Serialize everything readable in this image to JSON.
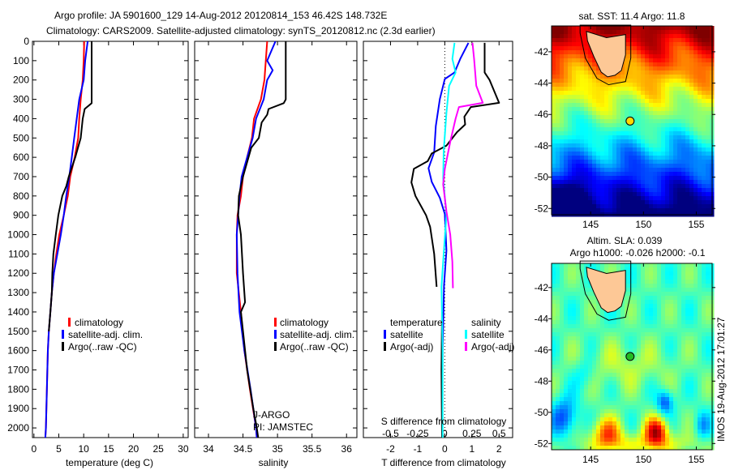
{
  "header": {
    "line1": "Argo profile: JA 5901600_129 14-Aug-2012 20120814_153 46.42S 148.732E",
    "line2": "Climatology: CARS2009. Satellite-adjusted climatology: synTS_20120812.nc (2.3d earlier)"
  },
  "colors": {
    "climatology": "#ff0000",
    "satellite": "#0000ff",
    "argo": "#000000",
    "sal_satellite": "#00ffff",
    "sal_argo": "#ff00ff"
  },
  "chart_data": [
    {
      "type": "line",
      "title": "",
      "xlabel": "temperature (deg C)",
      "ylabel": "",
      "xlim": [
        -0.3,
        31
      ],
      "ylim": [
        2050,
        0
      ],
      "xticks": [
        "0",
        "5",
        "10",
        "15",
        "20",
        "25",
        "30"
      ],
      "xtick_values": [
        0,
        5,
        10,
        15,
        20,
        25,
        30
      ],
      "yticks": [
        "0",
        "100",
        "200",
        "300",
        "400",
        "500",
        "600",
        "700",
        "800",
        "900",
        "1000",
        "1100",
        "1200",
        "1300",
        "1400",
        "1500",
        "1600",
        "1700",
        "1800",
        "1900",
        "2000"
      ],
      "ytick_values": [
        0,
        100,
        200,
        300,
        400,
        500,
        600,
        700,
        800,
        900,
        1000,
        1100,
        1200,
        1300,
        1400,
        1500,
        1600,
        1700,
        1800,
        1900,
        2000
      ],
      "legend": [
        "climatology",
        "satellite-adj. clim.",
        "Argo(..raw -QC)"
      ],
      "series": [
        {
          "name": "climatology",
          "color": "#ff0000",
          "points": [
            [
              10.1,
              0
            ],
            [
              10.0,
              100
            ],
            [
              9.8,
              200
            ],
            [
              9.4,
              300
            ],
            [
              9.1,
              400
            ],
            [
              8.9,
              500
            ],
            [
              8.2,
              600
            ],
            [
              7.3,
              700
            ],
            [
              6.8,
              800
            ],
            [
              6.0,
              900
            ],
            [
              5.1,
              1000
            ],
            [
              4.5,
              1100
            ],
            [
              4.0,
              1200
            ],
            [
              3.6,
              1300
            ],
            [
              3.3,
              1400
            ],
            [
              3.0,
              1500
            ],
            [
              2.8,
              1600
            ],
            [
              2.7,
              1700
            ],
            [
              2.6,
              1800
            ],
            [
              2.5,
              1900
            ],
            [
              2.4,
              2000
            ],
            [
              2.3,
              2050
            ]
          ]
        },
        {
          "name": "satellite-adj. clim.",
          "color": "#0000ff",
          "points": [
            [
              10.8,
              0
            ],
            [
              10.3,
              100
            ],
            [
              10.0,
              200
            ],
            [
              9.1,
              300
            ],
            [
              8.6,
              400
            ],
            [
              8.1,
              500
            ],
            [
              7.6,
              600
            ],
            [
              7.1,
              700
            ],
            [
              6.5,
              800
            ],
            [
              6.0,
              900
            ],
            [
              5.4,
              1000
            ],
            [
              4.7,
              1100
            ],
            [
              4.0,
              1200
            ],
            [
              3.6,
              1300
            ],
            [
              3.3,
              1400
            ],
            [
              3.0,
              1500
            ],
            [
              2.8,
              1600
            ],
            [
              2.7,
              1700
            ],
            [
              2.6,
              1800
            ],
            [
              2.5,
              1900
            ],
            [
              2.4,
              2000
            ],
            [
              2.3,
              2050
            ]
          ]
        },
        {
          "name": "Argo(..raw -QC)",
          "color": "#000000",
          "points": [
            [
              11.6,
              0
            ],
            [
              11.6,
              320
            ],
            [
              10.2,
              350
            ],
            [
              9.8,
              400
            ],
            [
              9.4,
              500
            ],
            [
              8.3,
              600
            ],
            [
              7.0,
              700
            ],
            [
              6.5,
              750
            ],
            [
              5.7,
              800
            ],
            [
              4.9,
              900
            ],
            [
              4.4,
              1000
            ],
            [
              3.9,
              1100
            ],
            [
              3.7,
              1200
            ],
            [
              3.6,
              1300
            ],
            [
              3.3,
              1400
            ],
            [
              3.0,
              1500
            ]
          ]
        }
      ]
    },
    {
      "type": "line",
      "xlabel": "salinity",
      "xlim": [
        33.8,
        36.15
      ],
      "ylim": [
        2050,
        0
      ],
      "xticks": [
        "34",
        "34.5",
        "35",
        "35.5",
        "36"
      ],
      "xtick_values": [
        34,
        34.5,
        35,
        35.5,
        36
      ],
      "legend": [
        "climatology",
        "satellite-adj. clim.",
        "Argo(..raw -QC)"
      ],
      "annotations": [
        "J-ARGO",
        "PI: JAMSTEC"
      ],
      "series": [
        {
          "name": "climatology",
          "color": "#ff0000",
          "points": [
            [
              34.85,
              0
            ],
            [
              34.83,
              100
            ],
            [
              34.81,
              200
            ],
            [
              34.76,
              300
            ],
            [
              34.66,
              400
            ],
            [
              34.63,
              500
            ],
            [
              34.56,
              600
            ],
            [
              34.5,
              700
            ],
            [
              34.47,
              800
            ],
            [
              34.42,
              900
            ],
            [
              34.41,
              1000
            ],
            [
              34.41,
              1200
            ],
            [
              34.47,
              1400
            ],
            [
              34.52,
              1600
            ],
            [
              34.6,
              1800
            ],
            [
              34.69,
              2000
            ],
            [
              34.7,
              2050
            ]
          ]
        },
        {
          "name": "satellite-adj. clim.",
          "color": "#0000ff",
          "points": [
            [
              34.97,
              0
            ],
            [
              34.91,
              50
            ],
            [
              34.85,
              100
            ],
            [
              34.93,
              150
            ],
            [
              34.85,
              200
            ],
            [
              34.8,
              300
            ],
            [
              34.69,
              400
            ],
            [
              34.64,
              500
            ],
            [
              34.56,
              600
            ],
            [
              34.48,
              700
            ],
            [
              34.45,
              800
            ],
            [
              34.43,
              900
            ],
            [
              34.41,
              1000
            ],
            [
              34.42,
              1200
            ],
            [
              34.45,
              1400
            ],
            [
              34.52,
              1600
            ],
            [
              34.61,
              1800
            ],
            [
              34.69,
              2000
            ],
            [
              34.7,
              2050
            ]
          ]
        },
        {
          "name": "Argo(..raw -QC)",
          "color": "#000000",
          "points": [
            [
              35.12,
              0
            ],
            [
              35.12,
              300
            ],
            [
              35.09,
              320
            ],
            [
              34.87,
              350
            ],
            [
              34.85,
              380
            ],
            [
              34.77,
              420
            ],
            [
              34.73,
              500
            ],
            [
              34.62,
              550
            ],
            [
              34.58,
              600
            ],
            [
              34.5,
              700
            ],
            [
              34.44,
              800
            ],
            [
              34.43,
              900
            ],
            [
              34.47,
              1000
            ],
            [
              34.5,
              1200
            ],
            [
              34.53,
              1350
            ],
            [
              34.47,
              1400
            ],
            [
              34.5,
              1500
            ],
            [
              34.56,
              1700
            ],
            [
              34.65,
              1900
            ],
            [
              34.7,
              2000
            ],
            [
              34.72,
              2050
            ]
          ]
        }
      ]
    },
    {
      "type": "line",
      "xlabel": "T difference from climatology",
      "x2label": "S difference from climatology",
      "xlim": [
        -3,
        2.5
      ],
      "ylim": [
        2050,
        0
      ],
      "xticks": [
        "-2",
        "-1",
        "0",
        "1",
        "2"
      ],
      "xtick_values": [
        -2,
        -1,
        0,
        1,
        2
      ],
      "x2ticks": [
        "-0.5",
        "-0.25",
        "0",
        "0.25",
        "0.5"
      ],
      "x2tick_values": [
        -0.5,
        -0.25,
        0,
        0.25,
        0.5
      ],
      "legend_titles": [
        "temperature",
        "salinity"
      ],
      "legend": [
        "satellite",
        "Argo(-adj)",
        "satellite",
        "Argo(-adj)"
      ],
      "series": [
        {
          "name": "T satellite",
          "axis": "T",
          "color": "#0000ff",
          "points": [
            [
              0.87,
              8
            ],
            [
              0.57,
              91
            ],
            [
              0.36,
              161
            ],
            [
              0.0,
              195
            ],
            [
              -0.18,
              298
            ],
            [
              -0.33,
              438
            ],
            [
              -0.39,
              574
            ],
            [
              -0.6,
              657
            ],
            [
              -0.48,
              727
            ],
            [
              -0.18,
              810
            ],
            [
              0.0,
              893
            ],
            [
              0.06,
              1083
            ],
            [
              -0.03,
              1264
            ],
            [
              -0.08,
              1600
            ],
            [
              -0.1,
              2050
            ]
          ]
        },
        {
          "name": "T Argo(-adj)",
          "axis": "T",
          "color": "#000000",
          "points": [
            [
              1.47,
              8
            ],
            [
              1.47,
              161
            ],
            [
              1.65,
              200
            ],
            [
              2.0,
              318
            ],
            [
              0.96,
              340
            ],
            [
              0.72,
              390
            ],
            [
              0.75,
              430
            ],
            [
              0.45,
              470
            ],
            [
              0.06,
              540
            ],
            [
              -0.48,
              580
            ],
            [
              -0.63,
              620
            ],
            [
              -1.14,
              660
            ],
            [
              -1.23,
              730
            ],
            [
              -1.08,
              800
            ],
            [
              -0.69,
              900
            ],
            [
              -0.54,
              960
            ],
            [
              -0.39,
              1100
            ],
            [
              -0.3,
              1270
            ]
          ]
        },
        {
          "name": "T Argo(-adj) deep",
          "axis": "T",
          "color": "#000000",
          "points": [
            [
              -0.1,
              1400
            ],
            [
              -0.12,
              1700
            ],
            [
              -0.1,
              2050
            ]
          ]
        },
        {
          "name": "S satellite",
          "axis": "S",
          "color": "#00ffff",
          "points": [
            [
              0.09,
              8
            ],
            [
              0.07,
              91
            ],
            [
              0.1,
              161
            ],
            [
              0.04,
              230
            ],
            [
              0.015,
              370
            ],
            [
              -0.01,
              570
            ],
            [
              -0.015,
              710
            ],
            [
              0.015,
              900
            ],
            [
              -0.01,
              1100
            ],
            [
              -0.03,
              1270
            ],
            [
              -0.02,
              1600
            ],
            [
              -0.02,
              2050
            ]
          ]
        },
        {
          "name": "S Argo(-adj)",
          "axis": "S",
          "color": "#ff00ff",
          "points": [
            [
              0.255,
              8
            ],
            [
              0.27,
              91
            ],
            [
              0.29,
              230
            ],
            [
              0.35,
              318
            ],
            [
              0.13,
              340
            ],
            [
              0.1,
              400
            ],
            [
              0.05,
              520
            ],
            [
              0.0,
              660
            ],
            [
              -0.015,
              740
            ],
            [
              0.015,
              880
            ],
            [
              0.05,
              1000
            ],
            [
              0.07,
              1140
            ],
            [
              0.075,
              1277
            ]
          ]
        }
      ]
    }
  ],
  "maps": [
    {
      "title": "sat. SST: 11.4 Argo: 11.8",
      "argo_lon": 148.732,
      "argo_lat": -46.42,
      "lon_ticks": [
        "145",
        "150",
        "155"
      ],
      "lat_ticks": [
        "-42",
        "-44",
        "-46",
        "-48",
        "-50",
        "-52"
      ]
    },
    {
      "title": "Altim. SLA: 0.039",
      "subtitle": "Argo h1000: -0.026 h2000: -0.1",
      "argo_lon": 148.732,
      "argo_lat": -46.42,
      "lon_ticks": [
        "145",
        "150",
        "155"
      ],
      "lat_ticks": [
        "-42",
        "-44",
        "-46",
        "-48",
        "-50",
        "-52"
      ]
    }
  ],
  "timestamp": "IMOS 19-Aug-2012 17:01:27"
}
